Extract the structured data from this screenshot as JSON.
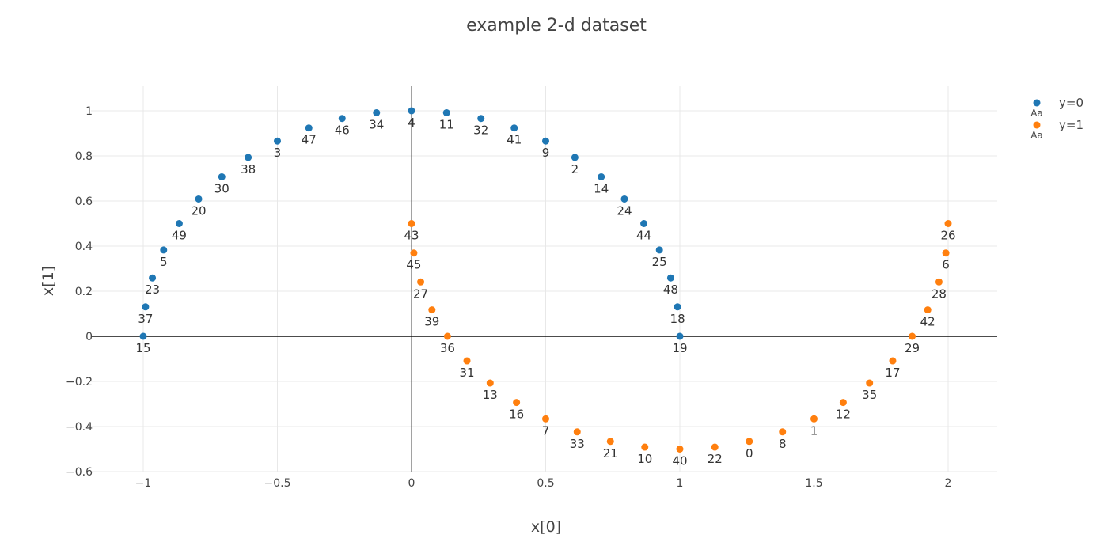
{
  "chart_data": {
    "type": "scatter",
    "title": "example 2-d dataset",
    "xlabel": "x[0]",
    "ylabel": "x[1]",
    "xlim": [
      -1.2,
      2.18
    ],
    "ylim": [
      -0.6,
      1.1
    ],
    "xticks": [
      -1,
      -0.5,
      0,
      0.5,
      1,
      1.5,
      2
    ],
    "xtick_labels": [
      "−1",
      "−0.5",
      "0",
      "0.5",
      "1",
      "1.5",
      "2"
    ],
    "yticks": [
      -0.6,
      -0.4,
      -0.2,
      0,
      0.2,
      0.4,
      0.6,
      0.8,
      1
    ],
    "ytick_labels": [
      "−0.6",
      "−0.4",
      "−0.2",
      "0",
      "0.2",
      "0.4",
      "0.6",
      "0.8",
      "1"
    ],
    "grid": true,
    "zero_lines": true,
    "legend_position": "top-right",
    "legend_symbol_text": "Aa",
    "series": [
      {
        "name": "y=0",
        "color": "#1f77b4",
        "points": [
          {
            "label": "15",
            "x": -1.0,
            "y": 0.0
          },
          {
            "label": "37",
            "x": -0.9914,
            "y": 0.1305
          },
          {
            "label": "23",
            "x": -0.9659,
            "y": 0.2588
          },
          {
            "label": "5",
            "x": -0.9239,
            "y": 0.3827
          },
          {
            "label": "49",
            "x": -0.866,
            "y": 0.5
          },
          {
            "label": "20",
            "x": -0.7934,
            "y": 0.6088
          },
          {
            "label": "30",
            "x": -0.7071,
            "y": 0.7071
          },
          {
            "label": "38",
            "x": -0.6088,
            "y": 0.7934
          },
          {
            "label": "3",
            "x": -0.5,
            "y": 0.866
          },
          {
            "label": "47",
            "x": -0.3827,
            "y": 0.9239
          },
          {
            "label": "46",
            "x": -0.2588,
            "y": 0.9659
          },
          {
            "label": "34",
            "x": -0.1305,
            "y": 0.9914
          },
          {
            "label": "4",
            "x": 0.0,
            "y": 1.0
          },
          {
            "label": "11",
            "x": 0.1305,
            "y": 0.9914
          },
          {
            "label": "32",
            "x": 0.2588,
            "y": 0.9659
          },
          {
            "label": "41",
            "x": 0.3827,
            "y": 0.9239
          },
          {
            "label": "9",
            "x": 0.5,
            "y": 0.866
          },
          {
            "label": "2",
            "x": 0.6088,
            "y": 0.7934
          },
          {
            "label": "14",
            "x": 0.7071,
            "y": 0.7071
          },
          {
            "label": "24",
            "x": 0.7934,
            "y": 0.6088
          },
          {
            "label": "44",
            "x": 0.866,
            "y": 0.5
          },
          {
            "label": "25",
            "x": 0.9239,
            "y": 0.3827
          },
          {
            "label": "48",
            "x": 0.9659,
            "y": 0.2588
          },
          {
            "label": "18",
            "x": 0.9914,
            "y": 0.1305
          },
          {
            "label": "19",
            "x": 1.0,
            "y": 0.0
          }
        ]
      },
      {
        "name": "y=1",
        "color": "#ff7f0e",
        "points": [
          {
            "label": "43",
            "x": 0.0,
            "y": 0.5
          },
          {
            "label": "45",
            "x": 0.0086,
            "y": 0.3695
          },
          {
            "label": "27",
            "x": 0.0341,
            "y": 0.2412
          },
          {
            "label": "39",
            "x": 0.0761,
            "y": 0.1173
          },
          {
            "label": "36",
            "x": 0.134,
            "y": 0.0
          },
          {
            "label": "31",
            "x": 0.2066,
            "y": -0.1088
          },
          {
            "label": "13",
            "x": 0.2929,
            "y": -0.2071
          },
          {
            "label": "16",
            "x": 0.3912,
            "y": -0.2934
          },
          {
            "label": "7",
            "x": 0.5,
            "y": -0.366
          },
          {
            "label": "33",
            "x": 0.6173,
            "y": -0.4239
          },
          {
            "label": "21",
            "x": 0.7412,
            "y": -0.4659
          },
          {
            "label": "10",
            "x": 0.8695,
            "y": -0.4914
          },
          {
            "label": "40",
            "x": 1.0,
            "y": -0.5
          },
          {
            "label": "22",
            "x": 1.1305,
            "y": -0.4914
          },
          {
            "label": "0",
            "x": 1.2588,
            "y": -0.4659
          },
          {
            "label": "8",
            "x": 1.3827,
            "y": -0.4239
          },
          {
            "label": "1",
            "x": 1.5,
            "y": -0.366
          },
          {
            "label": "12",
            "x": 1.6088,
            "y": -0.2934
          },
          {
            "label": "35",
            "x": 1.7071,
            "y": -0.2071
          },
          {
            "label": "17",
            "x": 1.7934,
            "y": -0.1088
          },
          {
            "label": "29",
            "x": 1.866,
            "y": 0.0
          },
          {
            "label": "42",
            "x": 1.9239,
            "y": 0.1173
          },
          {
            "label": "28",
            "x": 1.9659,
            "y": 0.2412
          },
          {
            "label": "6",
            "x": 1.9914,
            "y": 0.3695
          },
          {
            "label": "26",
            "x": 2.0,
            "y": 0.5
          }
        ]
      }
    ]
  }
}
